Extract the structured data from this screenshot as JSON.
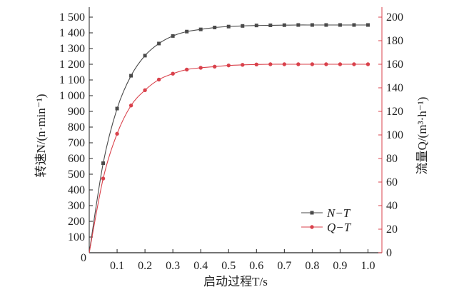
{
  "chart_data": {
    "type": "line",
    "xlabel": "启动过程T/s",
    "ylabel_left": "转速N/(n·min⁻¹)",
    "ylabel_right": "流量Q/(m³·h⁻¹)",
    "xlim": [
      0,
      1.05
    ],
    "ylim_left": [
      0,
      1500
    ],
    "ylim_right": [
      0,
      200
    ],
    "x_ticks": [
      "0.1",
      "0.2",
      "0.3",
      "0.4",
      "0.5",
      "0.6",
      "0.7",
      "0.8",
      "0.9",
      "1.0"
    ],
    "y_ticks_left": [
      "0",
      "100",
      "200",
      "300",
      "400",
      "500",
      "600",
      "700",
      "800",
      "900",
      "1 000",
      "1 100",
      "1 200",
      "1 300",
      "1 400",
      "1 500"
    ],
    "y_ticks_right": [
      "0",
      "20",
      "40",
      "60",
      "80",
      "100",
      "120",
      "140",
      "160",
      "180",
      "200"
    ],
    "grid": false,
    "legend_position": "bottom-right",
    "x": [
      0,
      0.05,
      0.1,
      0.15,
      0.2,
      0.25,
      0.3,
      0.35,
      0.4,
      0.45,
      0.5,
      0.55,
      0.6,
      0.65,
      0.7,
      0.75,
      0.8,
      0.85,
      0.9,
      0.95,
      1.0
    ],
    "series": [
      {
        "name": "N−T",
        "axis": "left",
        "color": "#4a4a4a",
        "marker": "square",
        "values": [
          0,
          570,
          918,
          1127,
          1255,
          1332,
          1380,
          1408,
          1422,
          1434,
          1440,
          1444,
          1447,
          1448,
          1449,
          1450,
          1450,
          1450,
          1450,
          1450,
          1450
        ]
      },
      {
        "name": "Q−T",
        "axis": "right",
        "color": "#d9414b",
        "marker": "circle",
        "values": [
          0,
          63,
          101,
          125,
          138,
          147,
          152,
          155.5,
          157,
          158,
          159,
          159.5,
          159.8,
          160,
          160,
          160,
          160,
          160,
          160,
          160,
          160
        ]
      }
    ]
  }
}
